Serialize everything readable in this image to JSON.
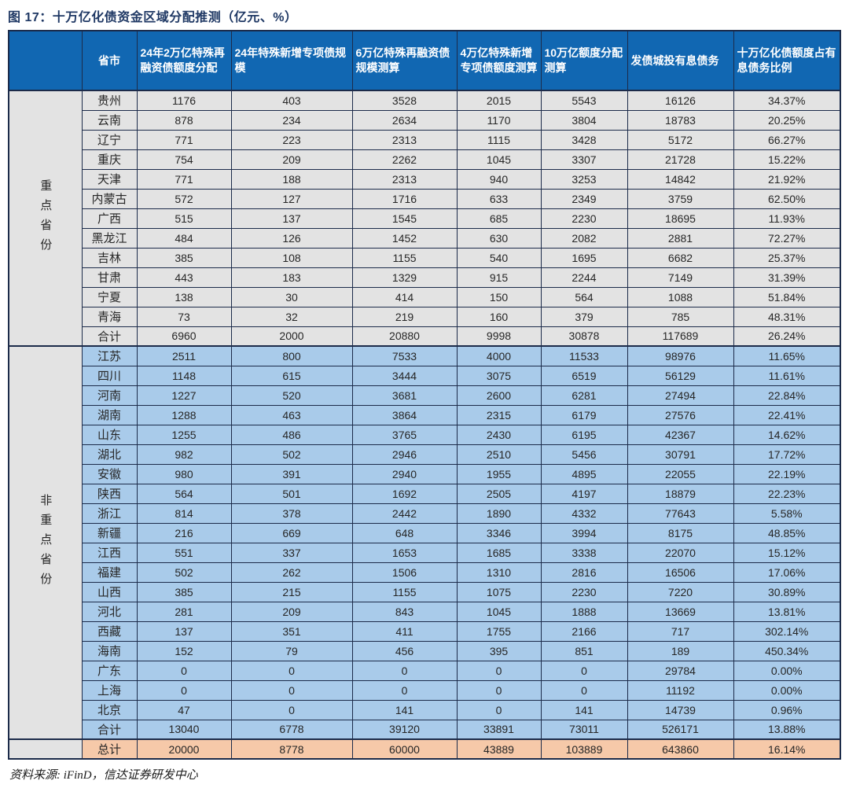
{
  "title": "图 17：十万亿化债资金区域分配推测（亿元、%）",
  "source": "资料来源: iFinD，信达证券研发中心",
  "colors": {
    "header_bg": "#1167b2",
    "header_text": "#ffffff",
    "key_section_bg": "#e3e3e3",
    "nonkey_section_bg": "#a9cbea",
    "grand_total_bg": "#f6c9a9",
    "border": "#1c2b4a",
    "title_text": "#1f3864"
  },
  "chart_data": {
    "type": "table",
    "title": "图 17：十万亿化债资金区域分配推测（亿元、%）",
    "corner_label": "",
    "columns": [
      "省市",
      "24年2万亿特殊再融资债额度分配",
      "24年特殊新增专项债规模",
      "6万亿特殊再融资债规模测算",
      "4万亿特殊新增专项债额度测算",
      "10万亿额度分配测算",
      "发债城投有息债务",
      "十万亿化债额度占有息债务比例"
    ],
    "groups": [
      {
        "label": "重点省份",
        "row_class": "key",
        "rows": [
          {
            "province": "贵州",
            "values": [
              1176,
              403,
              3528,
              2015,
              5543,
              16126
            ],
            "ratio": "34.37%"
          },
          {
            "province": "云南",
            "values": [
              878,
              234,
              2634,
              1170,
              3804,
              18783
            ],
            "ratio": "20.25%"
          },
          {
            "province": "辽宁",
            "values": [
              771,
              223,
              2313,
              1115,
              3428,
              5172
            ],
            "ratio": "66.27%"
          },
          {
            "province": "重庆",
            "values": [
              754,
              209,
              2262,
              1045,
              3307,
              21728
            ],
            "ratio": "15.22%"
          },
          {
            "province": "天津",
            "values": [
              771,
              188,
              2313,
              940,
              3253,
              14842
            ],
            "ratio": "21.92%"
          },
          {
            "province": "内蒙古",
            "values": [
              572,
              127,
              1716,
              633,
              2349,
              3759
            ],
            "ratio": "62.50%"
          },
          {
            "province": "广西",
            "values": [
              515,
              137,
              1545,
              685,
              2230,
              18695
            ],
            "ratio": "11.93%"
          },
          {
            "province": "黑龙江",
            "values": [
              484,
              126,
              1452,
              630,
              2082,
              2881
            ],
            "ratio": "72.27%"
          },
          {
            "province": "吉林",
            "values": [
              385,
              108,
              1155,
              540,
              1695,
              6682
            ],
            "ratio": "25.37%"
          },
          {
            "province": "甘肃",
            "values": [
              443,
              183,
              1329,
              915,
              2244,
              7149
            ],
            "ratio": "31.39%"
          },
          {
            "province": "宁夏",
            "values": [
              138,
              30,
              414,
              150,
              564,
              1088
            ],
            "ratio": "51.84%"
          },
          {
            "province": "青海",
            "values": [
              73,
              32,
              219,
              160,
              379,
              785
            ],
            "ratio": "48.31%"
          },
          {
            "province": "合计",
            "values": [
              6960,
              2000,
              20880,
              9998,
              30878,
              117689
            ],
            "ratio": "26.24%"
          }
        ]
      },
      {
        "label": "非重点省份",
        "row_class": "nonkey",
        "rows": [
          {
            "province": "江苏",
            "values": [
              2511,
              800,
              7533,
              4000,
              11533,
              98976
            ],
            "ratio": "11.65%"
          },
          {
            "province": "四川",
            "values": [
              1148,
              615,
              3444,
              3075,
              6519,
              56129
            ],
            "ratio": "11.61%"
          },
          {
            "province": "河南",
            "values": [
              1227,
              520,
              3681,
              2600,
              6281,
              27494
            ],
            "ratio": "22.84%"
          },
          {
            "province": "湖南",
            "values": [
              1288,
              463,
              3864,
              2315,
              6179,
              27576
            ],
            "ratio": "22.41%"
          },
          {
            "province": "山东",
            "values": [
              1255,
              486,
              3765,
              2430,
              6195,
              42367
            ],
            "ratio": "14.62%"
          },
          {
            "province": "湖北",
            "values": [
              982,
              502,
              2946,
              2510,
              5456,
              30791
            ],
            "ratio": "17.72%"
          },
          {
            "province": "安徽",
            "values": [
              980,
              391,
              2940,
              1955,
              4895,
              22055
            ],
            "ratio": "22.19%"
          },
          {
            "province": "陕西",
            "values": [
              564,
              501,
              1692,
              2505,
              4197,
              18879
            ],
            "ratio": "22.23%"
          },
          {
            "province": "浙江",
            "values": [
              814,
              378,
              2442,
              1890,
              4332,
              77643
            ],
            "ratio": "5.58%"
          },
          {
            "province": "新疆",
            "values": [
              216,
              669,
              648,
              3346,
              3994,
              8175
            ],
            "ratio": "48.85%"
          },
          {
            "province": "江西",
            "values": [
              551,
              337,
              1653,
              1685,
              3338,
              22070
            ],
            "ratio": "15.12%"
          },
          {
            "province": "福建",
            "values": [
              502,
              262,
              1506,
              1310,
              2816,
              16506
            ],
            "ratio": "17.06%"
          },
          {
            "province": "山西",
            "values": [
              385,
              215,
              1155,
              1075,
              2230,
              7220
            ],
            "ratio": "30.89%"
          },
          {
            "province": "河北",
            "values": [
              281,
              209,
              843,
              1045,
              1888,
              13669
            ],
            "ratio": "13.81%"
          },
          {
            "province": "西藏",
            "values": [
              137,
              351,
              411,
              1755,
              2166,
              717
            ],
            "ratio": "302.14%"
          },
          {
            "province": "海南",
            "values": [
              152,
              79,
              456,
              395,
              851,
              189
            ],
            "ratio": "450.34%"
          },
          {
            "province": "广东",
            "values": [
              0,
              0,
              0,
              0,
              0,
              29784
            ],
            "ratio": "0.00%"
          },
          {
            "province": "上海",
            "values": [
              0,
              0,
              0,
              0,
              0,
              11192
            ],
            "ratio": "0.00%"
          },
          {
            "province": "北京",
            "values": [
              47,
              0,
              141,
              0,
              141,
              14739
            ],
            "ratio": "0.96%"
          },
          {
            "province": "合计",
            "values": [
              13040,
              6778,
              39120,
              33891,
              73011,
              526171
            ],
            "ratio": "13.88%"
          }
        ]
      }
    ],
    "grand_total": {
      "label": "总计",
      "values": [
        20000,
        8778,
        60000,
        43889,
        103889,
        643860
      ],
      "ratio": "16.14%"
    }
  }
}
